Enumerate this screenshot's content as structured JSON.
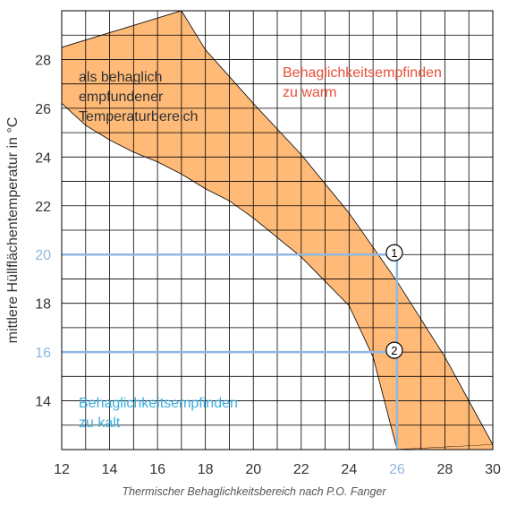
{
  "chart_data": {
    "type": "area",
    "caption": "Thermischer Behaglichkeitsbereich nach P.O. Fanger",
    "ylabel": "mittlere Hüllflächentemperatur in °C",
    "xlim": [
      12,
      30
    ],
    "ylim": [
      12,
      30
    ],
    "x_ticks": [
      12,
      14,
      16,
      18,
      20,
      22,
      24,
      26,
      28,
      30
    ],
    "y_ticks": [
      14,
      16,
      18,
      20,
      22,
      24,
      26,
      28
    ],
    "highlight_x_tick": 26,
    "highlight_y_ticks": [
      16,
      20
    ],
    "grid": true,
    "comfort_zone": {
      "label": [
        "als behaglich",
        "empfundener",
        "Temperaturbereich"
      ],
      "upper_boundary": [
        [
          12,
          26.2
        ],
        [
          13,
          25.3
        ],
        [
          14,
          24.7
        ],
        [
          15,
          24.2
        ],
        [
          16,
          23.8
        ],
        [
          17,
          23.3
        ],
        [
          18,
          22.7
        ],
        [
          19,
          22.2
        ],
        [
          20,
          21.5
        ],
        [
          21,
          20.7
        ],
        [
          22,
          19.9
        ],
        [
          23,
          18.9
        ],
        [
          24,
          17.9
        ],
        [
          25,
          15.8
        ],
        [
          26,
          12
        ]
      ],
      "lower_boundary": [
        [
          12,
          28.5
        ],
        [
          17,
          30
        ],
        [
          18,
          28.4
        ],
        [
          20,
          26.2
        ],
        [
          22,
          24.1
        ],
        [
          24,
          21.7
        ],
        [
          26,
          18.9
        ],
        [
          28,
          15.8
        ],
        [
          30,
          12.2
        ]
      ],
      "color": "#ffba78"
    },
    "regions": [
      {
        "label": [
          "Behaglichkeitsempfinden",
          "zu warm"
        ],
        "color": "#e8503a"
      },
      {
        "label": [
          "Behaglichkeitsempfinden",
          "zu kalt"
        ],
        "color": "#3aaee0"
      }
    ],
    "reference_lines": {
      "color": "#8fb8e0",
      "horizontal": [
        20,
        16
      ],
      "vertical": 26
    },
    "markers": [
      {
        "label": "1",
        "x": 26,
        "y": 20
      },
      {
        "label": "2",
        "x": 26,
        "y": 16
      }
    ]
  }
}
